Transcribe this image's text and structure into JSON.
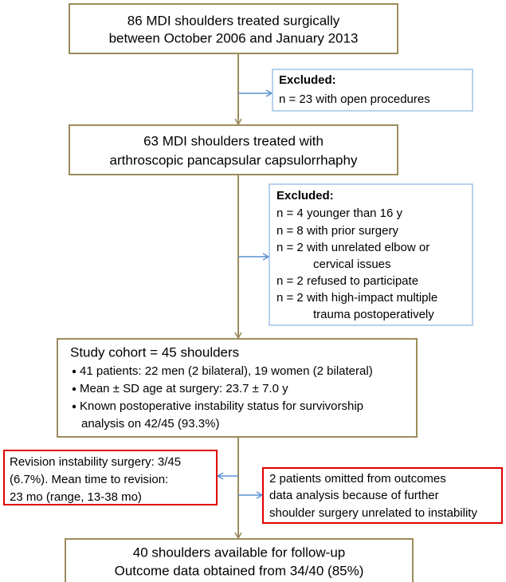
{
  "nodes": [
    {
      "lines": [
        "86 MDI shoulders treated surgically",
        "between October 2006 and January 2013"
      ]
    },
    {
      "title": "Excluded:",
      "lines": [
        "n = 23 with open procedures"
      ]
    },
    {
      "lines": [
        "63 MDI shoulders treated with",
        "arthroscopic pancapsular capsulorrhaphy"
      ]
    },
    {
      "title": "Excluded:",
      "lines": [
        "n = 4 younger than 16 y",
        "n = 8 with prior surgery",
        "n = 2 with unrelated elbow or",
        "cervical issues",
        "n = 2 refused to participate",
        "n = 2 with high-impact multiple",
        "trauma postoperatively"
      ]
    },
    {
      "title": "Study cohort = 45 shoulders",
      "items": [
        [
          "41 patients: 22 men (2 bilateral), 19 women (2 bilateral)"
        ],
        [
          "Mean ± SD age at surgery: 23.7 ± 7.0 y"
        ],
        [
          "Known postoperative instability status for survivorship",
          "analysis on 42/45 (93.3%)"
        ]
      ]
    },
    {
      "lines": [
        "Revision instability surgery: 3/45",
        "(6.7%). Mean time to revision:",
        "23 mo (range, 13-38 mo)"
      ]
    },
    {
      "lines": [
        "2 patients omitted from outcomes",
        "data analysis because of further",
        "shoulder surgery unrelated to instability"
      ]
    },
    {
      "lines": [
        "40 shoulders available for follow-up",
        "Outcome data obtained from 34/40 (85%)"
      ]
    }
  ]
}
